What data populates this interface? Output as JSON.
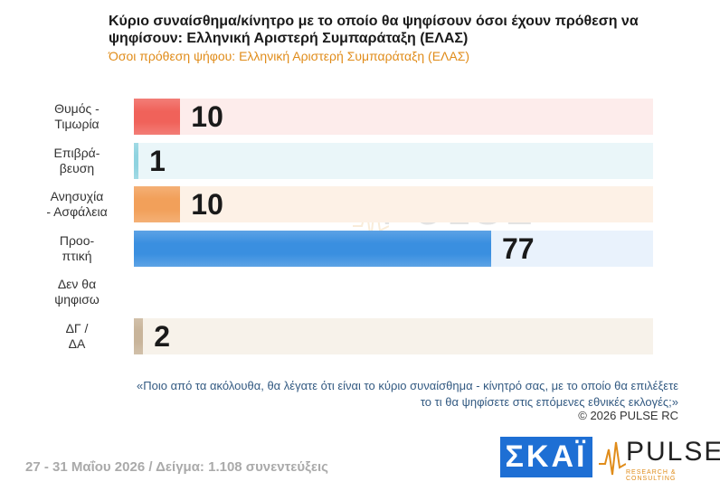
{
  "header": {
    "title": "Κύριο συναίσθημα/κίνητρο με το οποίο θα ψηφίσουν όσοι έχουν πρόθεση να ψηφίσουν: Ελληνική Αριστερή Συμπαράταξη (ΕΛΑΣ)",
    "subtitle": "Όσοι πρόθεση ψήφου: Ελληνική Αριστερή Συμπαράταξη (ΕΛΑΣ)"
  },
  "chart_data": {
    "type": "bar",
    "orientation": "horizontal",
    "categories": [
      "Θυμός - Τιμωρία",
      "Επιβρά-βευση",
      "Ανησυχία - Ασφάλεια",
      "Προο-πτική",
      "Δεν θα ψηφισω",
      "ΔΓ / ΔΑ"
    ],
    "category_lines": [
      [
        "Θυμός -",
        "Τιμωρία"
      ],
      [
        "Επιβρά-",
        "βευση"
      ],
      [
        "Ανησυχία",
        "- Ασφάλεια"
      ],
      [
        "Προο-",
        "πτική"
      ],
      [
        "Δεν θα",
        "ψηφισω"
      ],
      [
        "ΔΓ /",
        "ΔΑ"
      ]
    ],
    "values": [
      10,
      1,
      10,
      77,
      null,
      2
    ],
    "value_labels": [
      "10",
      "1",
      "10",
      "77",
      "",
      "2"
    ],
    "xlim": [
      0,
      100
    ],
    "colors": [
      "#f0625a",
      "#8fd3e0",
      "#f2a05a",
      "#3a8fe0",
      "#cccccc",
      "#c8b49a"
    ],
    "track_colors": [
      "#fdeceb",
      "#eaf6f9",
      "#fdf1e6",
      "#e9f2fc",
      "#ffffff",
      "#f7f2ea"
    ]
  },
  "watermark": {
    "text": "PULSE",
    "sub": "RESEARCH & CONSULTING"
  },
  "footnote": {
    "question_line1": "«Ποιο από τα ακόλουθα, θα λέγατε ότι είναι το κύριο συναίσθημα - κίνητρό σας, με το οποίο θα επιλέξετε",
    "question_line2": "το τι θα ψηφίσετε στις επόμενες εθνικές εκλογές;»",
    "copyright": "©  2026  PULSE RC"
  },
  "footer": {
    "text": "27 - 31  Μαΐου 2026  /  Δείγμα:  1.108 συνεντεύξεις"
  },
  "logos": {
    "skai": "ΣΚΑΪ",
    "pulse": "PULSE",
    "pulse_sub": "RESEARCH & CONSULTING"
  }
}
